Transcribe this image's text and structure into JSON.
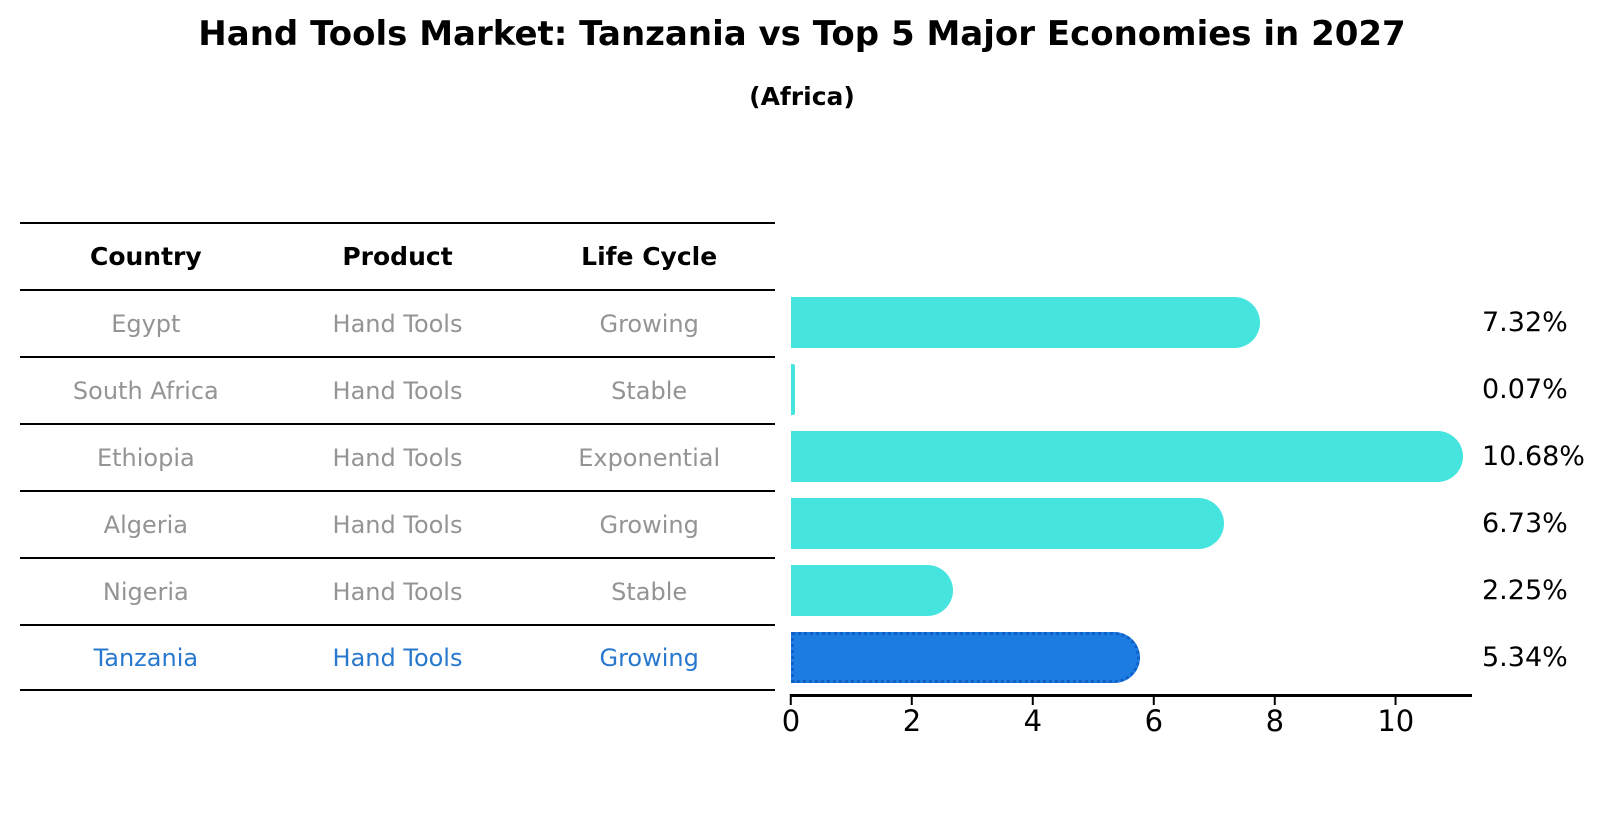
{
  "title": "Hand Tools Market: Tanzania vs Top 5 Major Economies in 2027",
  "subtitle": "(Africa)",
  "table": {
    "headers": [
      "Country",
      "Product",
      "Life Cycle"
    ],
    "rows": [
      {
        "country": "Egypt",
        "product": "Hand Tools",
        "life_cycle": "Growing",
        "highlight": false
      },
      {
        "country": "South Africa",
        "product": "Hand Tools",
        "life_cycle": "Stable",
        "highlight": false
      },
      {
        "country": "Ethiopia",
        "product": "Hand Tools",
        "life_cycle": "Exponential",
        "highlight": false
      },
      {
        "country": "Algeria",
        "product": "Hand Tools",
        "life_cycle": "Growing",
        "highlight": false
      },
      {
        "country": "Nigeria",
        "product": "Hand Tools",
        "life_cycle": "Stable",
        "highlight": false
      },
      {
        "country": "Tanzania",
        "product": "Hand Tools",
        "life_cycle": "Growing",
        "highlight": true
      }
    ]
  },
  "chart_data": {
    "type": "bar",
    "orientation": "horizontal",
    "title": "Hand Tools Market: Tanzania vs Top 5 Major Economies in 2027",
    "subtitle": "(Africa)",
    "categories": [
      "Egypt",
      "South Africa",
      "Ethiopia",
      "Algeria",
      "Nigeria",
      "Tanzania"
    ],
    "values": [
      7.32,
      0.07,
      10.68,
      6.73,
      2.25,
      5.34
    ],
    "value_labels": [
      "7.32%",
      "0.07%",
      "10.68%",
      "6.73%",
      "2.25%",
      "5.34%"
    ],
    "unit": "%",
    "xlabel": "",
    "ylabel": "",
    "xticks": [
      0,
      2,
      4,
      6,
      8,
      10
    ],
    "xlim": [
      0,
      11.26
    ],
    "grid": false,
    "legend": false,
    "bar_color": "#45E4DF",
    "highlight_color": "#1C7CE2",
    "highlight_border_color": "#0E5FC6",
    "highlight_index": 5
  },
  "colors": {
    "background": "#FFFFFF",
    "text": "#000000",
    "table_text": "#949494",
    "highlight_text": "#2879CE"
  }
}
